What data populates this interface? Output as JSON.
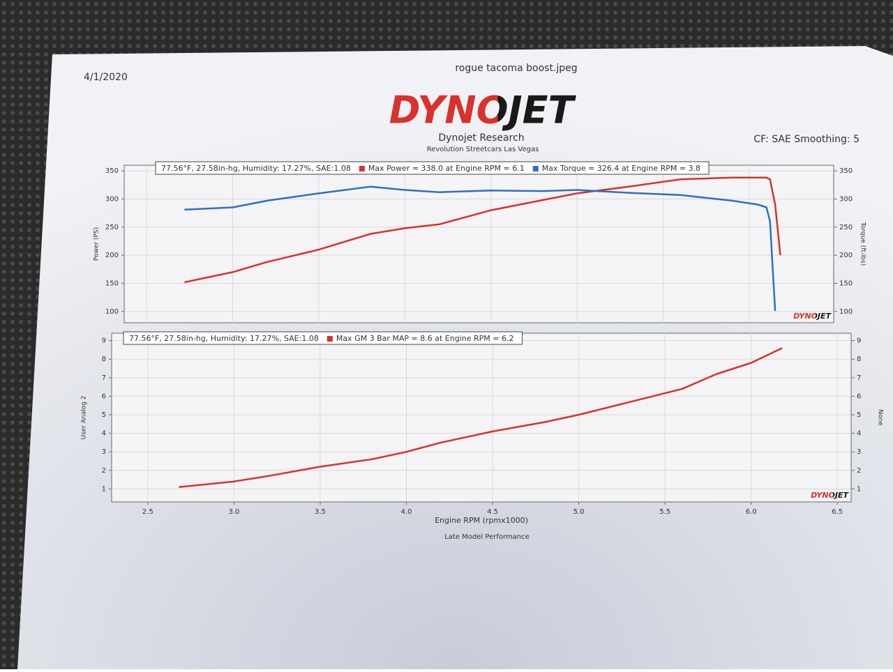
{
  "header": {
    "date": "4/1/2020",
    "filename": "rogue tacoma boost.jpeg",
    "logo": "DYNOJET",
    "company": "Dynojet Research",
    "shop": "Revolution Streetcars Las Vegas",
    "settings": "CF: SAE Smoothing: 5"
  },
  "footer": {
    "xlabel": "Engine RPM (rpmx1000)",
    "profile": "Late Model Performance"
  },
  "chart_data": [
    {
      "type": "line",
      "legend": "top-left",
      "grid": true,
      "legend_header": "77.56°F, 27.58in-hg, Humidity: 17.27%, SAE:1.08",
      "ylabel": "Power (PS)",
      "y2label": "Torque (ft-lbs)",
      "x": [
        2.72,
        3.0,
        3.2,
        3.5,
        3.8,
        4.0,
        4.2,
        4.5,
        4.8,
        5.0,
        5.3,
        5.6,
        5.9,
        6.05,
        6.1,
        6.12,
        6.15,
        6.18
      ],
      "xlim": [
        2.37,
        6.49
      ],
      "ylim": [
        80,
        360
      ],
      "yticks": [
        100,
        150,
        200,
        250,
        300,
        350
      ],
      "y2lim": [
        80,
        360
      ],
      "y2ticks": [
        100,
        150,
        200,
        250,
        300,
        350
      ],
      "series": [
        {
          "name": "Max Power = 338.0 at Engine RPM = 6.1",
          "color": "#d9312b",
          "values": [
            152,
            170,
            188,
            210,
            238,
            248,
            255,
            280,
            298,
            310,
            322,
            335,
            338,
            338,
            338,
            335,
            290,
            200
          ]
        },
        {
          "name": "Max Torque = 326.4 at Engine RPM = 3.8",
          "color": "#2f6fbf",
          "axis": "y2",
          "values": [
            281,
            285,
            297,
            310,
            322,
            316,
            312,
            315,
            314,
            316,
            311,
            307,
            297,
            290,
            285,
            260,
            101,
            null
          ]
        }
      ]
    },
    {
      "type": "line",
      "legend": "top-left",
      "grid": true,
      "legend_header": "77.56°F, 27.58in-hg, Humidity: 17.27%, SAE:1.08",
      "ylabel": "User Analog 2",
      "y2label": "None",
      "x": [
        2.68,
        3.0,
        3.2,
        3.5,
        3.8,
        4.0,
        4.2,
        4.5,
        4.8,
        5.0,
        5.3,
        5.6,
        5.8,
        6.0,
        6.18
      ],
      "xlim": [
        2.29,
        6.58
      ],
      "xticks": [
        2.5,
        {
          "value": 3,
          "label": "3.0"
        },
        3.5,
        {
          "value": 4,
          "label": "4.0"
        },
        4.5,
        {
          "value": 5,
          "label": "5.0"
        },
        5.5,
        {
          "value": 6,
          "label": "6.0"
        },
        6.5
      ],
      "ylim": [
        0.3,
        9.4
      ],
      "yticks": [
        1,
        2,
        3,
        4,
        5,
        6,
        7,
        8,
        9
      ],
      "y2lim": [
        0.3,
        9.4
      ],
      "y2ticks": [
        1,
        2,
        3,
        4,
        5,
        6,
        7,
        8,
        9
      ],
      "series": [
        {
          "name": "Max GM 3 Bar MAP = 8.6 at Engine RPM = 6.2",
          "color": "#d9312b",
          "values": [
            1.1,
            1.4,
            1.7,
            2.2,
            2.6,
            3.0,
            3.5,
            4.1,
            4.6,
            5.0,
            5.7,
            6.4,
            7.2,
            7.8,
            8.6
          ]
        }
      ]
    }
  ]
}
